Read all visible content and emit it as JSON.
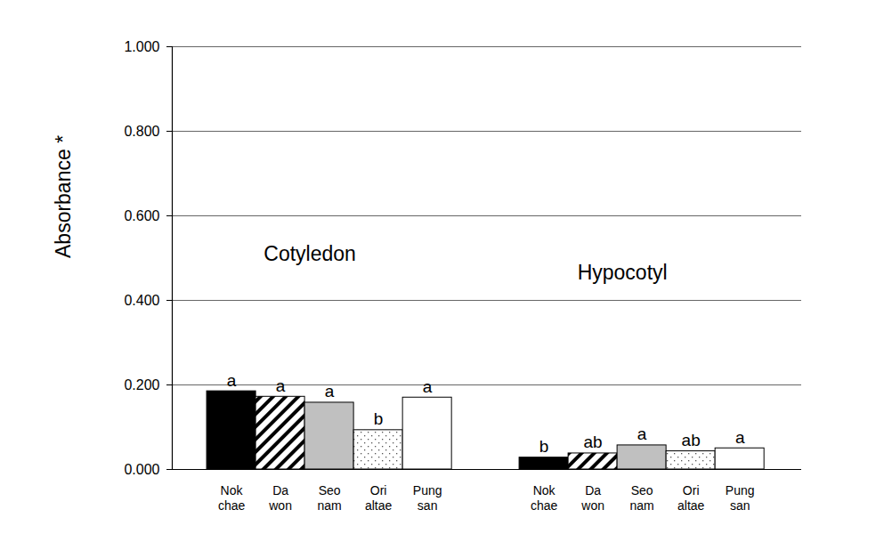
{
  "chart_data": {
    "type": "bar",
    "y_label": "Absorbance *",
    "categories": [
      "Nok\nchae",
      "Da\nwon",
      "Seo\nnam",
      "Ori\naltae",
      "Pung\nsan"
    ],
    "colors": [
      "#000000",
      "#ffffff",
      "#c0c0c0",
      "#ffffff",
      "#ffffff"
    ],
    "series": [
      {
        "name": "Cotyledon",
        "values": [
          0.185,
          0.172,
          0.158,
          0.093,
          0.17
        ],
        "letters": [
          "a",
          "a",
          "a",
          "b",
          "a"
        ]
      },
      {
        "name": "Hypocotyl",
        "values": [
          0.028,
          0.038,
          0.057,
          0.043,
          0.05
        ],
        "letters": [
          "b",
          "ab",
          "a",
          "ab",
          "a"
        ]
      }
    ],
    "ylim": [
      0,
      1
    ],
    "yticks": [
      {
        "value": 0,
        "label": "0.000"
      },
      {
        "value": 0.2,
        "label": "0.200"
      },
      {
        "value": 0.4,
        "label": "0.400"
      },
      {
        "value": 0.6,
        "label": "0.600"
      },
      {
        "value": 0.8,
        "label": "0.800"
      },
      {
        "value": 1,
        "label": "1.000"
      }
    ],
    "grid": true
  }
}
